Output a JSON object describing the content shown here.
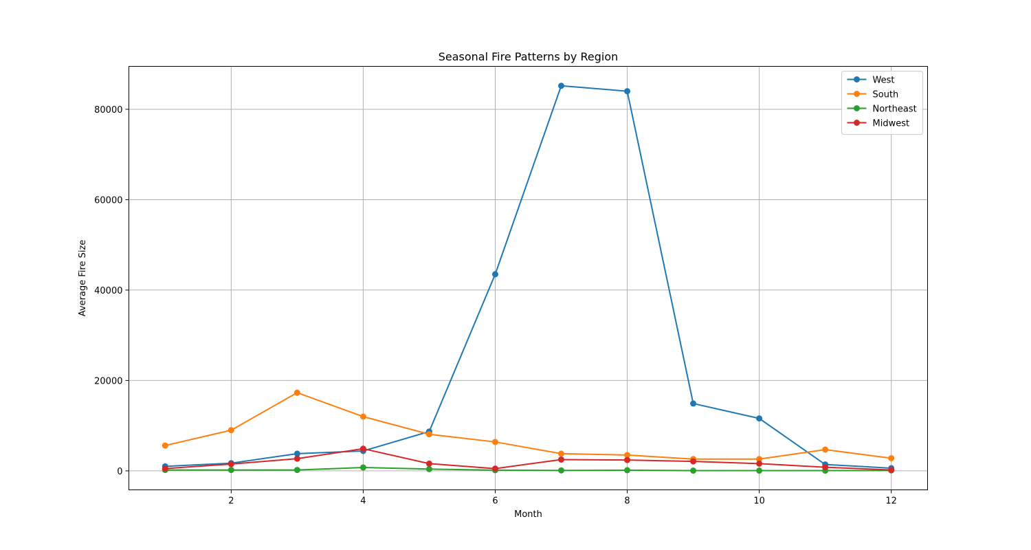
{
  "chart_data": {
    "type": "line",
    "title": "Seasonal Fire Patterns by Region",
    "xlabel": "Month",
    "ylabel": "Average Fire Size",
    "x": [
      1,
      2,
      3,
      4,
      5,
      6,
      7,
      8,
      9,
      10,
      11,
      12
    ],
    "xlim": [
      0.45,
      12.55
    ],
    "ylim": [
      -4200,
      89500
    ],
    "xticks": [
      2,
      4,
      6,
      8,
      10,
      12
    ],
    "yticks": [
      0,
      20000,
      40000,
      60000,
      80000
    ],
    "grid": true,
    "legend_position": "top-right",
    "series": [
      {
        "name": "West",
        "color": "#1f77b4",
        "values": [
          1000,
          1700,
          3800,
          4400,
          8700,
          43500,
          85200,
          84000,
          14900,
          11600,
          1400,
          600
        ]
      },
      {
        "name": "South",
        "color": "#ff7f0e",
        "values": [
          5600,
          9000,
          17300,
          12000,
          8100,
          6400,
          3800,
          3500,
          2600,
          2600,
          4700,
          2800
        ]
      },
      {
        "name": "Northeast",
        "color": "#2ca02c",
        "values": [
          200,
          200,
          200,
          750,
          400,
          150,
          100,
          150,
          50,
          50,
          50,
          100
        ]
      },
      {
        "name": "Midwest",
        "color": "#d62728",
        "values": [
          500,
          1500,
          2700,
          4900,
          1600,
          500,
          2500,
          2400,
          2100,
          1600,
          800,
          200
        ]
      }
    ]
  }
}
